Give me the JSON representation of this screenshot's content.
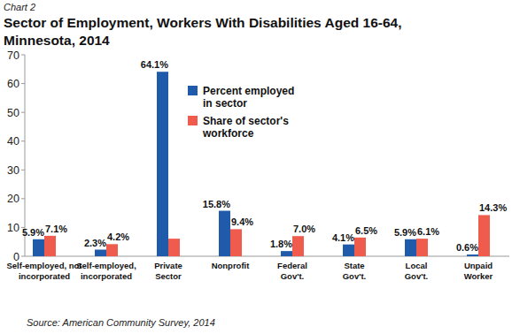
{
  "chart_data": {
    "type": "bar",
    "chart_label": "Chart 2",
    "title": "Sector of Employment, Workers With Disabilities Aged 16-64,\nMinnesota, 2014",
    "source": "Source: American Community Survey, 2014",
    "categories": [
      "Self-employed, not\nincorporated",
      "Self-employed,\nincorporated",
      "Private\nSector",
      "Nonprofit",
      "Federal\nGov't.",
      "State\nGov't.",
      "Local\nGov't.",
      "Unpaid\nWorker"
    ],
    "series": [
      {
        "name": "Percent employed\nin sector",
        "color": "#1f5baa",
        "values": [
          5.9,
          2.3,
          64.1,
          15.8,
          1.8,
          4.1,
          5.9,
          0.6
        ],
        "value_labels": [
          "5.9%",
          "2.3%",
          "64.1%",
          "15.8%",
          "1.8%",
          "4.1%",
          "5.9%",
          "0.6%"
        ]
      },
      {
        "name": "Share of sector's\nworkforce",
        "color": "#ef5b4c",
        "values": [
          7.1,
          4.2,
          6.1,
          9.4,
          7.0,
          6.5,
          6.1,
          14.3
        ],
        "value_labels": [
          "7.1%",
          "4.2%",
          null,
          "9.4%",
          "7.0%",
          "6.5%",
          "6.1%",
          "14.3%"
        ]
      }
    ],
    "ylim": [
      0,
      70
    ],
    "yticks": [
      0,
      10,
      20,
      30,
      40,
      50,
      60,
      70
    ],
    "grid": false,
    "legend": "top",
    "data_labels": true
  }
}
